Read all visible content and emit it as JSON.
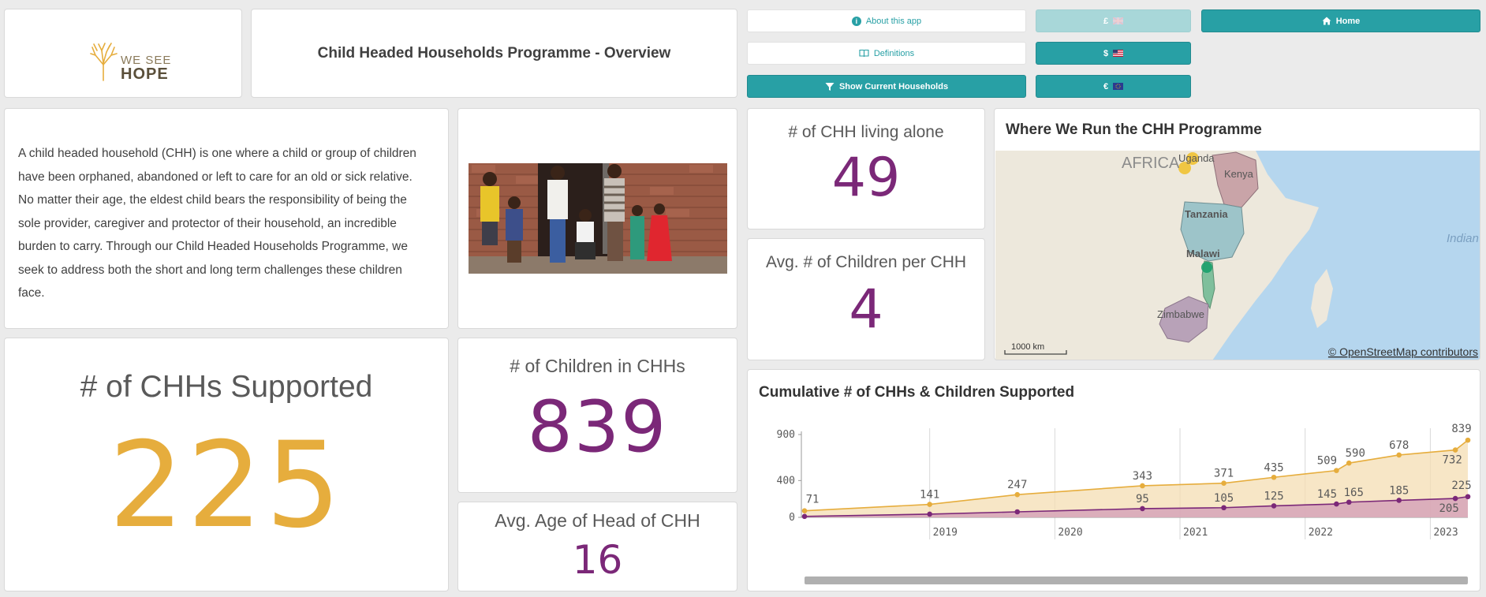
{
  "logo": {
    "line1": "WE SEE",
    "line2": "HOPE"
  },
  "header": {
    "title": "Child Headed Households Programme - Overview"
  },
  "buttons": {
    "about": "About this app",
    "definitions": "Definitions",
    "show_current": "Show Current Households",
    "currency_gbp": "£",
    "currency_usd": "$",
    "currency_eur": "€",
    "home": "Home"
  },
  "description": "A child headed household (CHH) is one where a child or group of children have been orphaned, abandoned or left to care for an old or sick relative. No matter their age, the eldest child bears the responsibility of being the sole provider, caregiver and protector of their household, an incredible burden to carry. Through our Child Headed Households Programme, we seek to address both the short and long term challenges these children face.",
  "kpis": {
    "living_alone": {
      "label": "# of CHH living alone",
      "value": "49"
    },
    "avg_children": {
      "label": "Avg. # of Children per CHH",
      "value": "4"
    },
    "supported": {
      "label": "# of CHHs Supported",
      "value": "225"
    },
    "children": {
      "label": "# of Children in CHHs",
      "value": "839"
    },
    "avg_age": {
      "label": "Avg. Age of Head of CHH",
      "value": "16"
    }
  },
  "map": {
    "title": "Where We Run the CHH Programme",
    "labels": {
      "africa": "AFRICA",
      "uganda": "Uganda",
      "kenya": "Kenya",
      "tanzania": "Tanzania",
      "malawi": "Malawi",
      "zimbabwe": "Zimbabwe",
      "indian": "Indian"
    },
    "scale": "1000 km",
    "attribution": "© OpenStreetMap contributors",
    "colors": {
      "water": "#b5d6ee",
      "land": "#ede8dc",
      "kenya": "#c9a4a8",
      "tanzania": "#9dc4c9",
      "zimbabwe": "#b8a2b8"
    }
  },
  "chart_data": {
    "type": "area",
    "title": "Cumulative # of CHHs & Children Supported",
    "ylim": [
      0,
      900
    ],
    "yticks": [
      "900",
      "400",
      "0"
    ],
    "xtick_labels": [
      "2019",
      "2020",
      "2021",
      "2022",
      "2023"
    ],
    "xtick_positions": [
      2019.0,
      2020.0,
      2021.0,
      2022.0,
      2023.0
    ],
    "xlim": [
      2018.0,
      2023.3
    ],
    "series": [
      {
        "name": "Children",
        "color": "#e6ad3d",
        "fill": "#f4ddb3",
        "points": [
          {
            "x": 2018.0,
            "y": 71,
            "label": "71"
          },
          {
            "x": 2019.0,
            "y": 141,
            "label": "141"
          },
          {
            "x": 2019.7,
            "y": 247,
            "label": "247"
          },
          {
            "x": 2020.7,
            "y": 343,
            "label": "343"
          },
          {
            "x": 2021.35,
            "y": 371,
            "label": "371"
          },
          {
            "x": 2021.75,
            "y": 435,
            "label": "435"
          },
          {
            "x": 2022.25,
            "y": 509,
            "label": "509"
          },
          {
            "x": 2022.35,
            "y": 590,
            "label": "590"
          },
          {
            "x": 2022.75,
            "y": 678,
            "label": "678"
          },
          {
            "x": 2023.2,
            "y": 732,
            "label": "732"
          },
          {
            "x": 2023.3,
            "y": 839,
            "label": "839"
          }
        ]
      },
      {
        "name": "CHHs",
        "color": "#7b2878",
        "fill": "#d6a3b8",
        "points": [
          {
            "x": 2018.0,
            "y": 10,
            "label": ""
          },
          {
            "x": 2019.0,
            "y": 35,
            "label": ""
          },
          {
            "x": 2019.7,
            "y": 60,
            "label": ""
          },
          {
            "x": 2020.7,
            "y": 95,
            "label": "95"
          },
          {
            "x": 2021.35,
            "y": 105,
            "label": "105"
          },
          {
            "x": 2021.75,
            "y": 125,
            "label": "125"
          },
          {
            "x": 2022.25,
            "y": 145,
            "label": "145"
          },
          {
            "x": 2022.35,
            "y": 165,
            "label": "165"
          },
          {
            "x": 2022.75,
            "y": 185,
            "label": "185"
          },
          {
            "x": 2023.2,
            "y": 205,
            "label": "205"
          },
          {
            "x": 2023.3,
            "y": 225,
            "label": "225"
          }
        ]
      }
    ]
  }
}
